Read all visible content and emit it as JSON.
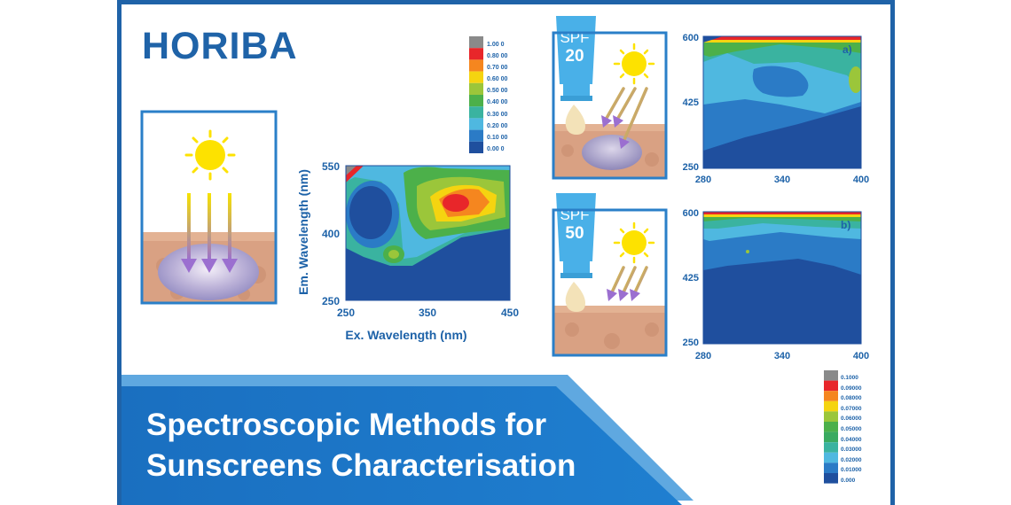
{
  "brand": "HORIBA",
  "title_line1": "Spectroscopic Methods for",
  "title_line2": "Sunscreens Characterisation",
  "colors": {
    "brand_blue": "#1f63a8",
    "accent_blue": "#2a7fc8",
    "banner_light": "#5fa8e0",
    "skin": "#d9a183",
    "sun": "#fde200"
  },
  "bottles": [
    {
      "label_top": "SPF",
      "label_num": "20"
    },
    {
      "label_top": "SPF",
      "label_num": "50"
    }
  ],
  "chart_data": [
    {
      "type": "heatmap",
      "name": "main-eem",
      "title": "",
      "xlabel": "Ex. Wavelength (nm)",
      "ylabel": "Em. Wavelength (nm)",
      "xlim": [
        250,
        450
      ],
      "ylim": [
        250,
        550
      ],
      "xticks": [
        "250",
        "350",
        "450"
      ],
      "yticks": [
        "250",
        "400",
        "550"
      ],
      "legend": [
        "1.00 0",
        "0.80 00",
        "0.70 00",
        "0.60 00",
        "0.50 00",
        "0.40 00",
        "0.30 00",
        "0.20 00",
        "0.10 00",
        "0.00 0"
      ],
      "legend_colors": [
        "#8a8a8a",
        "#e8262a",
        "#f5861f",
        "#f5d410",
        "#9bc63a",
        "#4cb04a",
        "#3ab3a0",
        "#4fb8e0",
        "#2b7bc6",
        "#1f4f9e"
      ]
    },
    {
      "type": "heatmap",
      "name": "spf20-eem",
      "annotation": "a)",
      "xlim": [
        280,
        400
      ],
      "ylim": [
        250,
        600
      ],
      "xticks": [
        "280",
        "340",
        "400"
      ],
      "yticks": [
        "250",
        "425",
        "600"
      ]
    },
    {
      "type": "heatmap",
      "name": "spf50-eem",
      "annotation": "b)",
      "xlim": [
        280,
        400
      ],
      "ylim": [
        250,
        600
      ],
      "xticks": [
        "280",
        "340",
        "400"
      ],
      "yticks": [
        "250",
        "425",
        "600"
      ],
      "legend": [
        "0.1000",
        "0.09000",
        "0.08000",
        "0.07000",
        "0.06000",
        "0.05000",
        "0.04000",
        "0.03000",
        "0.02000",
        "0.01000",
        "0.000"
      ],
      "legend_colors": [
        "#8a8a8a",
        "#e8262a",
        "#f5861f",
        "#f5d410",
        "#9bc63a",
        "#4cb04a",
        "#3aaa60",
        "#3ab3a0",
        "#4fb8e0",
        "#2b7bc6",
        "#1f4f9e"
      ]
    }
  ]
}
